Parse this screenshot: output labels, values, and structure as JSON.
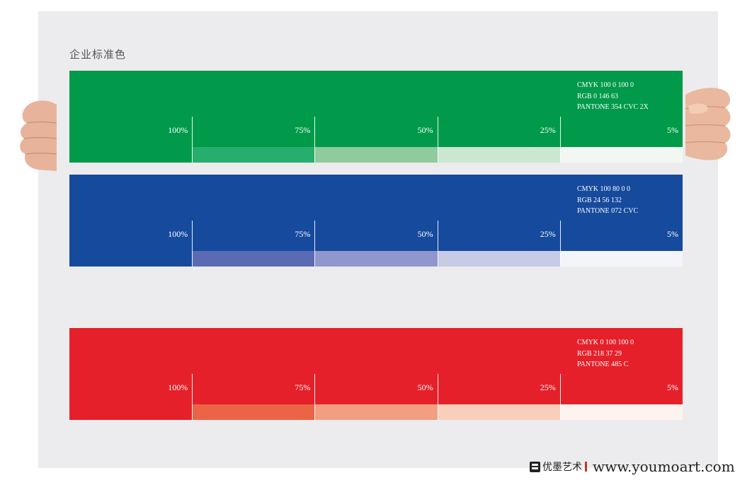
{
  "heading": "企业标准色",
  "palettes": [
    {
      "id": "green",
      "color": "#009A4A",
      "tints": [
        "#009A4A",
        "#26AF6C",
        "#8FCB9C",
        "#CCE7D1",
        "#F2F8F1"
      ],
      "info": [
        "CMYK 100 0 100 0",
        "RGB 0 146 63",
        "PANTONE 354 CVC 2X"
      ],
      "percents": [
        "100%",
        "75%",
        "50%",
        "25%",
        "5%"
      ]
    },
    {
      "id": "blue",
      "color": "#164A9C",
      "tints": [
        "#164A9C",
        "#5A6BB3",
        "#8F97CD",
        "#C8CBE6",
        "#F4F5FA"
      ],
      "info": [
        "CMYK 100 80 0 0",
        "RGB 24 56 132",
        "PANTONE 072 CVC"
      ],
      "percents": [
        "100%",
        "75%",
        "50%",
        "25%",
        "5%"
      ]
    },
    {
      "id": "red",
      "color": "#E5202A",
      "tints": [
        "#E5202A",
        "#EC6446",
        "#F29E80",
        "#F9CFBC",
        "#FDF4F0"
      ],
      "info": [
        "CMYK 0 100 100 0",
        "RGB 218 37 29",
        "PANTONE 485 C"
      ],
      "percents": [
        "100%",
        "75%",
        "50%",
        "25%",
        "5%"
      ]
    }
  ],
  "watermark": {
    "cn_text": "优墨艺术",
    "url": "www.youmoart.com"
  }
}
